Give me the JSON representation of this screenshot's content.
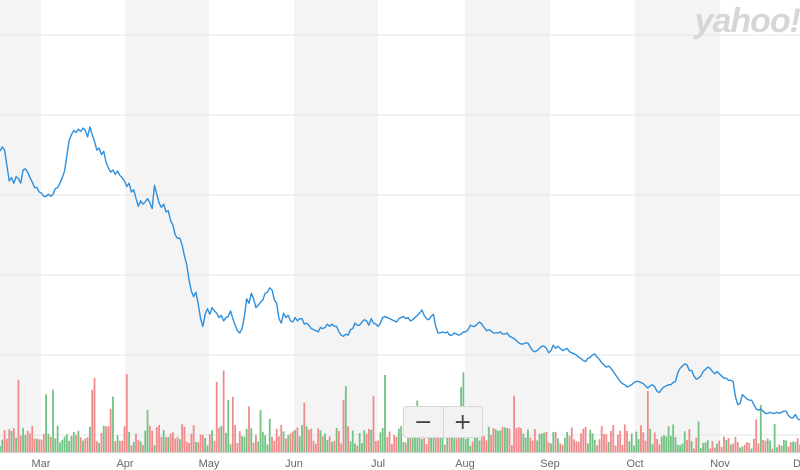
{
  "branding": {
    "watermark": "yahoo!"
  },
  "controls": {
    "zoom_out_label": "−",
    "zoom_in_label": "+"
  },
  "colors": {
    "price_line": "#2e8fdc",
    "volume_up": "#72c283",
    "volume_down": "#f08b8b",
    "band": "#f4f4f4",
    "grid": "#e6e6e6"
  },
  "chart_data": {
    "type": "line",
    "title": "",
    "xlabel": "",
    "ylabel": "",
    "x_tick_labels": [
      "Mar",
      "Apr",
      "May",
      "Jun",
      "Jul",
      "Aug",
      "Sep",
      "Oct",
      "Nov",
      "D"
    ],
    "grid": true,
    "series": [
      {
        "values": [
          79,
          83,
          80,
          66,
          52,
          55,
          50,
          56,
          54,
          50,
          62,
          63,
          60,
          55,
          51,
          46,
          46,
          42,
          41,
          38,
          38,
          40,
          38,
          40,
          45,
          46,
          50,
          55,
          61,
          75,
          89,
          94,
          98,
          96,
          99,
          97,
          100,
          98,
          92,
          101,
          94,
          88,
          80,
          82,
          76,
          79,
          69,
          64,
          60,
          62,
          58,
          61,
          57,
          55,
          52,
          47,
          50,
          42,
          44,
          36,
          29,
          34,
          31,
          33,
          36,
          32,
          27,
          48,
          40,
          32,
          28,
          31,
          24,
          25,
          16,
          12,
          3,
          0,
          0,
          -6,
          -16,
          -24,
          -38,
          -48,
          -53,
          -49,
          -60,
          -73,
          -80,
          -69,
          -64,
          -69,
          -63,
          -66,
          -68,
          -72,
          -70,
          -75,
          -72,
          -71,
          -66,
          -73,
          -79,
          -84,
          -86,
          -82,
          -71,
          -55,
          -59,
          -50,
          -55,
          -63,
          -61,
          -58,
          -56,
          -50,
          -49,
          -45,
          -47,
          -56,
          -59,
          -73,
          -77,
          -68,
          -72,
          -70,
          -75,
          -76,
          -72,
          -75,
          -73,
          -73,
          -78,
          -77,
          -79,
          -82,
          -83,
          -84,
          -85,
          -81,
          -82,
          -81,
          -78,
          -80,
          -78,
          -80,
          -80,
          -85,
          -88,
          -89,
          -87,
          -88,
          -83,
          -82,
          -77,
          -79,
          -79,
          -76,
          -74,
          -75,
          -79,
          -73,
          -77,
          -78,
          -80,
          -77,
          -72,
          -71,
          -72,
          -73,
          -74,
          -75,
          -76,
          -73,
          -72,
          -71,
          -73,
          -72,
          -75,
          -74,
          -72,
          -70,
          -68,
          -65,
          -70,
          -73,
          -74,
          -71,
          -69,
          -80,
          -86,
          -86,
          -85,
          -86,
          -85,
          -88,
          -88,
          -86,
          -87,
          -88,
          -87,
          -85,
          -85,
          -83,
          -79,
          -80,
          -80,
          -78,
          -76,
          -78,
          -81,
          -84,
          -83,
          -84,
          -86,
          -86,
          -86,
          -85,
          -87,
          -87,
          -86,
          -89,
          -90,
          -91,
          -93,
          -95,
          -96,
          -96,
          -95,
          -95,
          -99,
          -102,
          -103,
          -102,
          -100,
          -98,
          -98,
          -100,
          -104,
          -102,
          -97,
          -100,
          -98,
          -100,
          -102,
          -101,
          -100,
          -103,
          -104,
          -105,
          -106,
          -108,
          -109,
          -111,
          -112,
          -109,
          -108,
          -106,
          -105,
          -108,
          -110,
          -113,
          -115,
          -117,
          -116,
          -118,
          -121,
          -124,
          -127,
          -130,
          -132,
          -133,
          -135,
          -134,
          -133,
          -131,
          -130,
          -130,
          -131,
          -132,
          -134,
          -136,
          -134,
          -133,
          -135,
          -139,
          -140,
          -137,
          -135,
          -134,
          -133,
          -133,
          -131,
          -130,
          -122,
          -118,
          -116,
          -114,
          -115,
          -120,
          -120,
          -125,
          -128,
          -127,
          -125,
          -121,
          -119,
          -117,
          -118,
          -121,
          -123,
          -121,
          -123,
          -125,
          -127,
          -127,
          -129,
          -129,
          -130,
          -144,
          -151,
          -150,
          -142,
          -144,
          -146,
          -147,
          -147,
          -151,
          -155,
          -156,
          -155,
          -157,
          -159,
          -159,
          -158,
          -159,
          -159,
          -158,
          -159,
          -158,
          -157,
          -157,
          -161,
          -163,
          -163,
          -160,
          -164,
          -165
        ]
      }
    ]
  }
}
